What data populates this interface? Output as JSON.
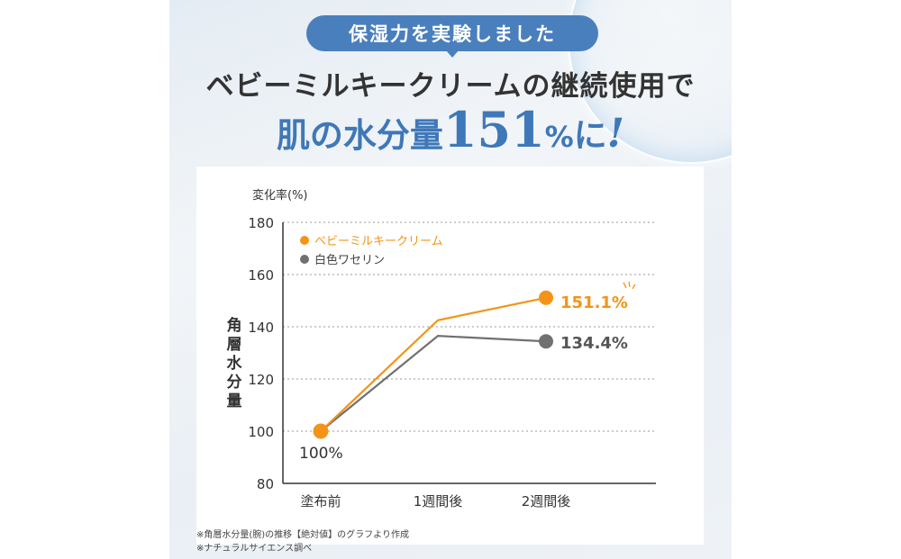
{
  "header": {
    "pill_label": "保湿力を実験しました",
    "headline": "ベビーミルキークリームの継続使用で",
    "subhead_prefix": "肌の水分量",
    "subhead_number": "151",
    "subhead_percent": "%",
    "subhead_suffix": "に",
    "subhead_exclaim": "!"
  },
  "footnotes": [
    "※角層水分量(腕)の推移【絶対値】のグラフより作成",
    "※ナチュラルサイエンス調べ"
  ],
  "colors": {
    "accent_blue": "#4a7fbd",
    "series_orange": "#f39418",
    "series_gray": "#707070"
  },
  "chart_data": {
    "type": "line",
    "unit_label": "変化率(%)",
    "ylabel": "角層水分量",
    "ylim": [
      80,
      180
    ],
    "yticks": [
      80,
      100,
      120,
      140,
      160,
      180
    ],
    "grid": true,
    "legend_position": "top-left",
    "categories": [
      "塗布前",
      "1週間後",
      "2週間後"
    ],
    "series": [
      {
        "name": "ベビーミルキークリーム",
        "color": "#f39418",
        "values": [
          100,
          142.5,
          151.1
        ],
        "end_label": "151.1%"
      },
      {
        "name": "白色ワセリン",
        "color": "#707070",
        "values": [
          100,
          136.5,
          134.4
        ],
        "end_label": "134.4%"
      }
    ],
    "start_label": "100%"
  }
}
